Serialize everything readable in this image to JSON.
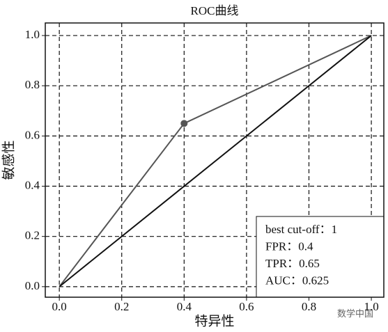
{
  "chart_data": {
    "type": "line",
    "title": "ROC曲线",
    "x_label": "特异性",
    "y_label": "敏感性",
    "xlim": [
      -0.045,
      1.04
    ],
    "ylim": [
      -0.042,
      1.05
    ],
    "xticks": [
      {
        "value": 0,
        "label": "0.0"
      },
      0.2,
      0.4,
      0.6,
      0.8,
      {
        "value": 1,
        "label": "1.0"
      }
    ],
    "yticks": [
      {
        "value": 0,
        "label": "0.0"
      },
      0.2,
      0.4,
      0.6,
      0.8,
      {
        "value": 1,
        "label": "1.0"
      }
    ],
    "grid": true,
    "series": [
      {
        "color": "#555555",
        "x": [
          0,
          0.4,
          1
        ],
        "values": [
          0,
          0.65,
          1
        ]
      },
      {
        "color": "#111111",
        "x": [
          0,
          1
        ],
        "values": [
          0,
          1
        ]
      }
    ],
    "highlight": {
      "x": 0.4,
      "y": 0.65,
      "color": "#555555"
    },
    "annotations": [
      "best cut-off：1",
      "FPR：0.4",
      "TPR：0.65",
      "AUC：0.625"
    ],
    "watermark": "数学中国"
  }
}
